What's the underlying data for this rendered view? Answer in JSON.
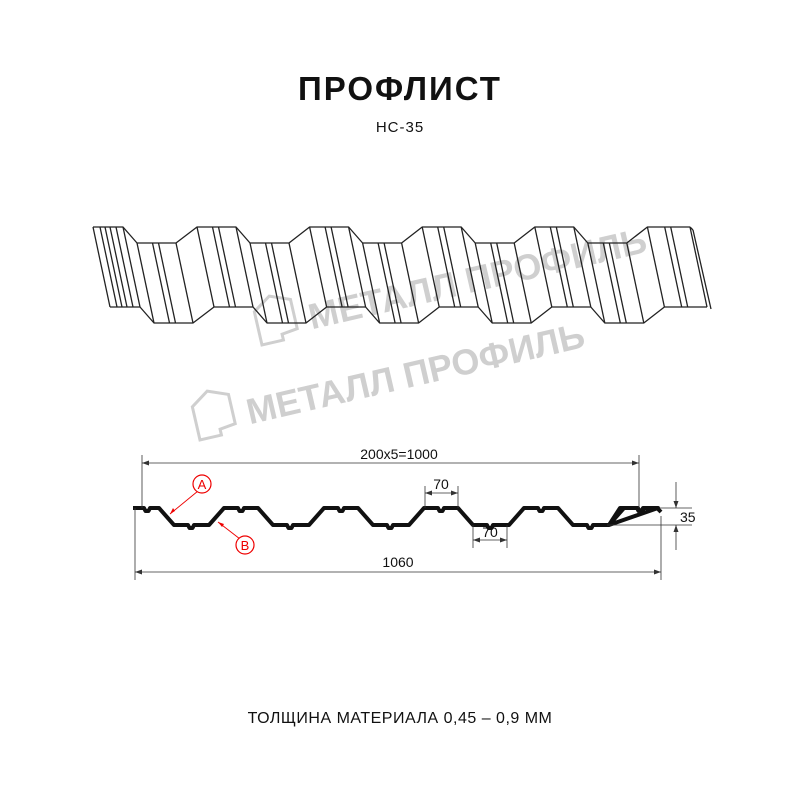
{
  "header": {
    "title": "ПРОФЛИСТ",
    "subtitle": "НС-35"
  },
  "watermark": {
    "text": "МЕТАЛЛ ПРОФИЛЬ"
  },
  "dimensions": {
    "pitch": "200x5=1000",
    "top_width": "70",
    "bottom_width": "70",
    "total_width": "1060",
    "height": "35"
  },
  "callouts": {
    "a": "A",
    "b": "B"
  },
  "footer": {
    "thickness": "ТОЛЩИНА МАТЕРИАЛА 0,45 – 0,9 ММ"
  },
  "colors": {
    "line": "#111111",
    "callout": "#e00000",
    "watermark": "#cfcfcf"
  }
}
